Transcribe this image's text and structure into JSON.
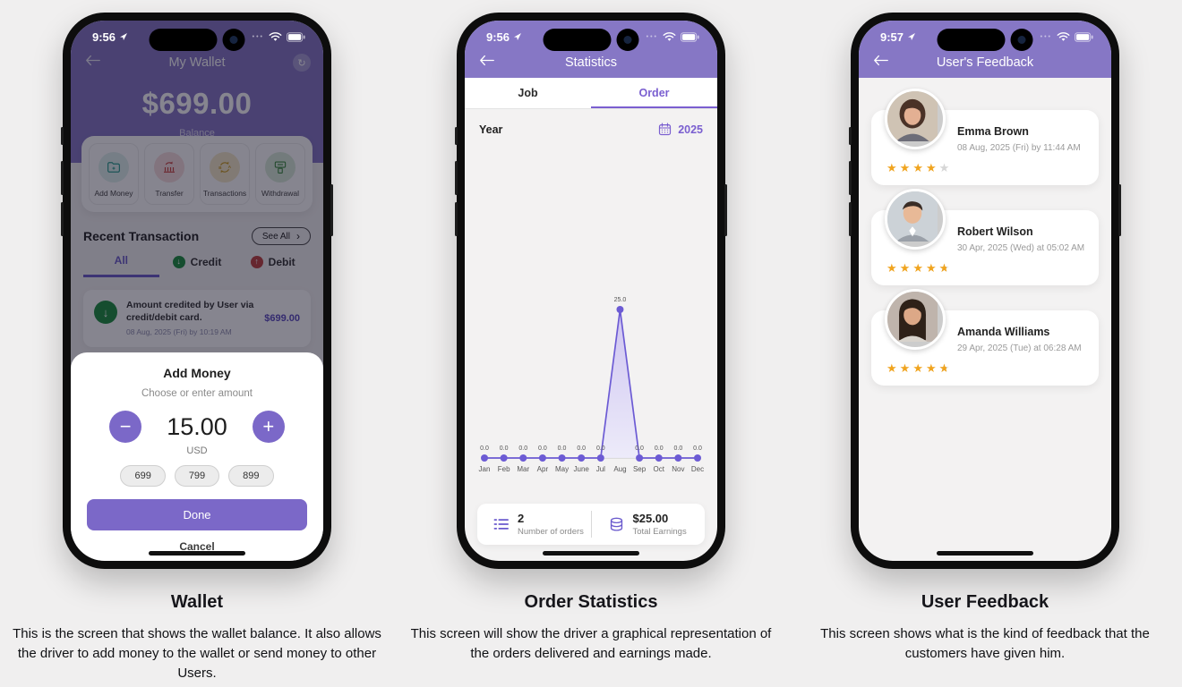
{
  "theme": {
    "header_purple": "#8677c5",
    "accent_purple": "#7a5fd0",
    "button_purple": "#7b68c8",
    "star_gold": "#f0a41f",
    "credit_green": "#1d8f3f",
    "debit_red": "#bf4340"
  },
  "wallet": {
    "status": {
      "time": "9:56"
    },
    "header": {
      "title": "My Wallet",
      "balance": "$699.00",
      "balance_label": "Balance"
    },
    "actions": [
      {
        "label": "Add Money",
        "icon": "folder-plus-icon"
      },
      {
        "label": "Transfer",
        "icon": "bank-transfer-icon"
      },
      {
        "label": "Transactions",
        "icon": "exchange-ab-icon"
      },
      {
        "label": "Withdrawal",
        "icon": "atm-icon"
      }
    ],
    "recent": {
      "title": "Recent Transaction",
      "see_all": "See All",
      "tabs": [
        {
          "label": "All",
          "active": true
        },
        {
          "label": "Credit",
          "icon": "arrow-down-circle-icon"
        },
        {
          "label": "Debit",
          "icon": "arrow-up-circle-icon"
        }
      ],
      "transaction": {
        "text": "Amount credited by User via credit/debit card.",
        "date": "08 Aug, 2025 (Fri) by 10:19 AM",
        "amount": "$699.00"
      }
    },
    "modal": {
      "title": "Add Money",
      "subtitle": "Choose or enter amount",
      "amount": "15.00",
      "currency": "USD",
      "chips": [
        "699",
        "799",
        "899"
      ],
      "done_label": "Done",
      "cancel_label": "Cancel"
    }
  },
  "stats": {
    "status": {
      "time": "9:56"
    },
    "header": {
      "title": "Statistics"
    },
    "tabs": [
      {
        "label": "Job",
        "active": false
      },
      {
        "label": "Order",
        "active": true
      }
    ],
    "year_label": "Year",
    "year_value": "2025",
    "chart_data": {
      "type": "line",
      "categories": [
        "Jan",
        "Feb",
        "Mar",
        "Apr",
        "May",
        "June",
        "Jul",
        "Aug",
        "Sep",
        "Oct",
        "Nov",
        "Dec"
      ],
      "values": [
        0,
        0,
        0,
        0,
        0,
        0,
        0,
        25,
        0,
        0,
        0,
        0
      ],
      "point_labels": [
        "0.0",
        "0.0",
        "0.0",
        "0.0",
        "0.0",
        "0.0",
        "0.0",
        "25.0",
        "0.0",
        "0.0",
        "0.0",
        "0.0"
      ],
      "ylim": [
        0,
        25
      ],
      "line_color": "#6c5bd4",
      "area_color_top": "#c7bcf0",
      "area_color_bottom": "#eceafb",
      "grid": false,
      "legend": "none"
    },
    "summary": [
      {
        "value": "2",
        "label": "Number of orders",
        "icon": "list-icon"
      },
      {
        "value": "$25.00",
        "label": "Total Earnings",
        "icon": "coins-icon"
      }
    ]
  },
  "feedback": {
    "status": {
      "time": "9:57"
    },
    "header": {
      "title": "User's Feedback"
    },
    "reviews": [
      {
        "name": "Emma Brown",
        "date": "08 Aug, 2025 (Fri) by 11:44 AM",
        "rating": 4
      },
      {
        "name": "Robert Wilson",
        "date": "30 Apr, 2025 (Wed) at 05:02 AM",
        "rating": 4.5
      },
      {
        "name": "Amanda Williams",
        "date": "29 Apr, 2025 (Tue) at 06:28 AM",
        "rating": 4.5
      }
    ]
  },
  "captions": [
    {
      "title": "Wallet",
      "text": "This is the screen that shows the wallet balance. It also allows the driver to add money to the wallet or send money to other Users."
    },
    {
      "title": "Order Statistics",
      "text": "This screen will show the driver a graphical representation of the orders delivered and earnings made."
    },
    {
      "title": "User Feedback",
      "text": "This screen shows what is the kind of feedback that the customers have given him."
    }
  ]
}
